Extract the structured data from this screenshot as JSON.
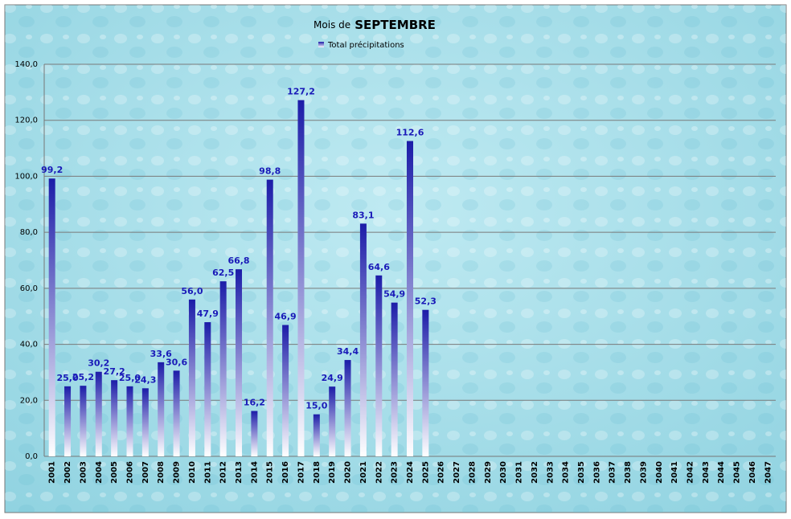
{
  "chart_data": {
    "type": "bar",
    "title_parts": [
      "Mois de",
      "SEPTEMBRE"
    ],
    "series": [
      {
        "name": "Total précipitations",
        "color": "#1c1ca8",
        "values": [
          99.2,
          25.0,
          25.2,
          30.2,
          27.2,
          25.0,
          24.3,
          33.6,
          30.6,
          56.0,
          47.9,
          62.5,
          66.8,
          16.2,
          98.8,
          46.9,
          127.2,
          15.0,
          24.9,
          34.4,
          83.1,
          64.6,
          54.9,
          112.6,
          52.3,
          null,
          null,
          null,
          null,
          null,
          null,
          null,
          null,
          null,
          null,
          null,
          null,
          null,
          null,
          null,
          null,
          null,
          null,
          null,
          null,
          null,
          null
        ],
        "value_labels": [
          "99,2",
          "25,0",
          "25,2",
          "30,2",
          "27,2",
          "25,0",
          "24,3",
          "33,6",
          "30,6",
          "56,0",
          "47,9",
          "62,5",
          "66,8",
          "16,2",
          "98,8",
          "46,9",
          "127,2",
          "15,0",
          "24,9",
          "34,4",
          "83,1",
          "64,6",
          "54,9",
          "112,6",
          "52,3",
          null,
          null,
          null,
          null,
          null,
          null,
          null,
          null,
          null,
          null,
          null,
          null,
          null,
          null,
          null,
          null,
          null,
          null,
          null,
          null,
          null,
          null
        ]
      }
    ],
    "categories": [
      "2001",
      "2002",
      "2003",
      "2004",
      "2005",
      "2006",
      "2007",
      "2008",
      "2009",
      "2010",
      "2011",
      "2012",
      "2013",
      "2014",
      "2015",
      "2016",
      "2017",
      "2018",
      "2019",
      "2020",
      "2021",
      "2022",
      "2023",
      "2024",
      "2025",
      "2026",
      "2027",
      "2028",
      "2029",
      "2030",
      "2031",
      "2032",
      "2033",
      "2034",
      "2035",
      "2036",
      "2037",
      "2038",
      "2039",
      "2040",
      "2041",
      "2042",
      "2043",
      "2044",
      "2045",
      "2046",
      "2047"
    ],
    "ylim": [
      0,
      140
    ],
    "yticks": [
      {
        "value": 0,
        "label": "0,0"
      },
      {
        "value": 20,
        "label": "20,0"
      },
      {
        "value": 40,
        "label": "40,0"
      },
      {
        "value": 60,
        "label": "60,0"
      },
      {
        "value": 80,
        "label": "80,0"
      },
      {
        "value": 100,
        "label": "100,0"
      },
      {
        "value": 120,
        "label": "120,0"
      },
      {
        "value": 140,
        "label": "140,0"
      }
    ],
    "grid": true
  }
}
